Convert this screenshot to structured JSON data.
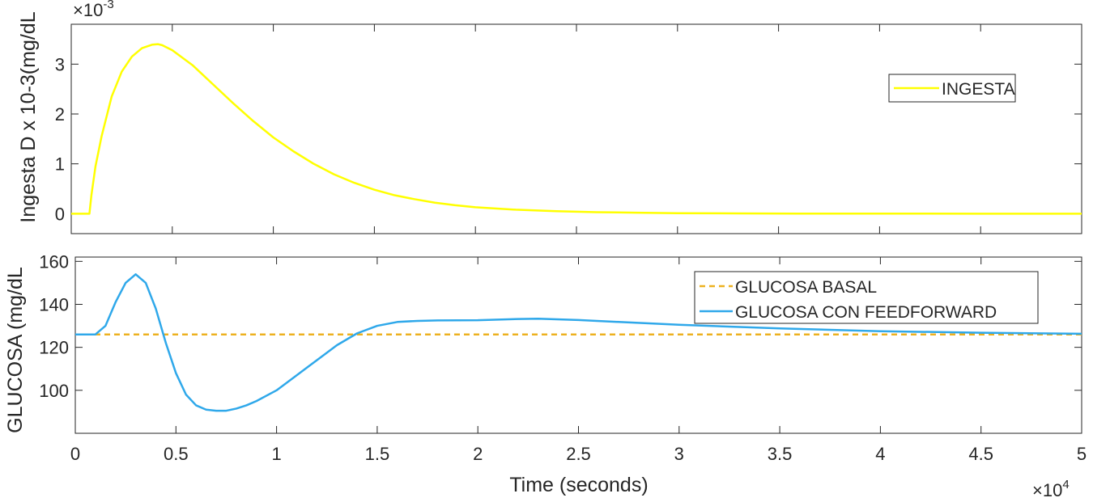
{
  "chart_data": [
    {
      "type": "line",
      "ylabel": "Ingesta D x 10-3(mg/dL",
      "exponent_base": "×10",
      "exponent_power": "-3",
      "xlim": [
        0,
        50000
      ],
      "ylim": [
        -0.4,
        3.8
      ],
      "yticks": [
        0,
        1,
        2,
        3
      ],
      "ytick_labels": [
        "0",
        "1",
        "2",
        "3"
      ],
      "legend_position": "right",
      "colors": {
        "INGESTA": "#ffff00"
      },
      "series": [
        {
          "name": "INGESTA",
          "x": [
            0,
            900,
            1000,
            1200,
            1500,
            2000,
            2500,
            3000,
            3500,
            4000,
            4300,
            4500,
            5000,
            6000,
            7000,
            8000,
            9000,
            10000,
            11000,
            12000,
            13000,
            14000,
            15000,
            16000,
            17000,
            18000,
            19000,
            20000,
            22000,
            24000,
            26000,
            28000,
            30000,
            33000,
            36000,
            40000,
            45000,
            50000
          ],
          "y": [
            0,
            0,
            0.38,
            0.95,
            1.55,
            2.35,
            2.85,
            3.15,
            3.32,
            3.39,
            3.4,
            3.38,
            3.28,
            2.98,
            2.6,
            2.22,
            1.86,
            1.53,
            1.25,
            1.0,
            0.79,
            0.62,
            0.48,
            0.37,
            0.29,
            0.22,
            0.17,
            0.13,
            0.08,
            0.05,
            0.03,
            0.02,
            0.01,
            0.005,
            0.002,
            0.001,
            0.0,
            0.0
          ]
        }
      ]
    },
    {
      "type": "line",
      "xlabel": "Time (seconds)",
      "ylabel": "GLUCOSA (mg/dL",
      "exponent_base": "×10",
      "exponent_power": "4",
      "xlim": [
        0,
        50000
      ],
      "ylim": [
        80,
        162
      ],
      "xticks": [
        0,
        5000,
        10000,
        15000,
        20000,
        25000,
        30000,
        35000,
        40000,
        45000,
        50000
      ],
      "xtick_labels": [
        "0",
        "0.5",
        "1",
        "1.5",
        "2",
        "2.5",
        "3",
        "3.5",
        "4",
        "4.5",
        "5"
      ],
      "yticks": [
        100,
        120,
        140,
        160
      ],
      "ytick_labels": [
        "100",
        "120",
        "140",
        "160"
      ],
      "legend_position": "top-right",
      "colors": {
        "GLUCOSA BASAL": "#edb120",
        "GLUCOSA CON FEEDFORWARD": "#2fa8ea"
      },
      "series": [
        {
          "name": "GLUCOSA BASAL",
          "x": [
            0,
            50000
          ],
          "y": [
            126,
            126
          ]
        },
        {
          "name": "GLUCOSA CON FEEDFORWARD",
          "x": [
            0,
            1000,
            1500,
            2000,
            2500,
            3000,
            3500,
            4000,
            4500,
            5000,
            5500,
            6000,
            6500,
            7000,
            7500,
            8000,
            8500,
            9000,
            10000,
            11000,
            12000,
            13000,
            14000,
            15000,
            16000,
            17000,
            18000,
            20000,
            22000,
            23000,
            25000,
            27000,
            30000,
            35000,
            40000,
            45000,
            50000
          ],
          "y": [
            126,
            126,
            130,
            141,
            150,
            154,
            150,
            138,
            122,
            108,
            98,
            93,
            91,
            90.5,
            90.5,
            91.5,
            93,
            95,
            100,
            107,
            114,
            121,
            126.5,
            130,
            131.8,
            132.3,
            132.5,
            132.6,
            133.2,
            133.3,
            132.7,
            131.8,
            130.5,
            128.8,
            127.5,
            126.8,
            126.3
          ]
        }
      ]
    }
  ]
}
